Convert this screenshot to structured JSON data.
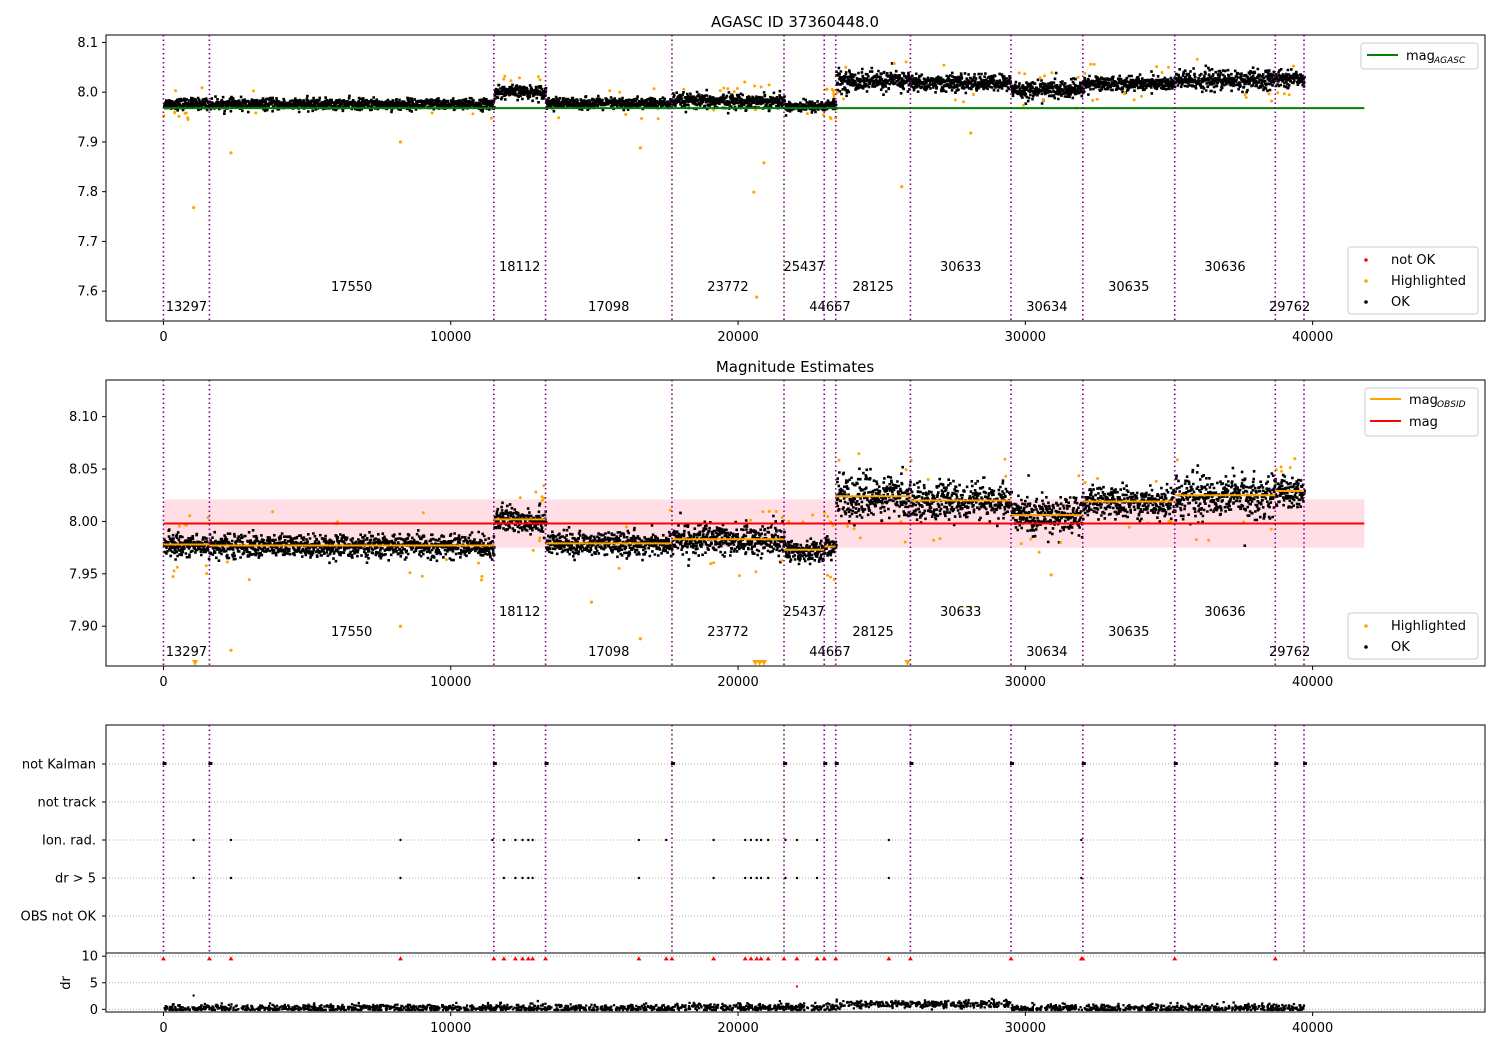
{
  "chart_data": [
    {
      "type": "scatter",
      "title": "AGASC ID 37360448.0",
      "xlabel": "",
      "ylabel": "",
      "xlim": [
        -2000,
        46000
      ],
      "ylim": [
        7.54,
        8.115
      ],
      "xticks": [
        0,
        10000,
        20000,
        30000,
        40000
      ],
      "xtick_labels": [
        "0",
        "10000",
        "20000",
        "30000",
        "40000"
      ],
      "yticks": [
        7.6,
        7.7,
        7.8,
        7.9,
        8.0,
        8.1
      ],
      "ytick_labels": [
        "7.6",
        "7.7",
        "7.8",
        "7.9",
        "8.0",
        "8.1"
      ],
      "reference_line": {
        "label": "mag",
        "subscript": "AGASC",
        "value": 7.968,
        "x_range": [
          0,
          41800
        ],
        "color": "#008000"
      },
      "legend_lines": [
        {
          "label": "mag",
          "subscript": "AGASC",
          "color": "#008000"
        }
      ],
      "legend_points": [
        {
          "label": "not OK",
          "color": "#ff0000"
        },
        {
          "label": "Highlighted",
          "color": "#ffa500"
        },
        {
          "label": "OK",
          "color": "#000000"
        }
      ]
    },
    {
      "type": "scatter",
      "title": "Magnitude Estimates",
      "xlabel": "",
      "ylabel": "",
      "xlim": [
        -2000,
        46000
      ],
      "ylim": [
        7.862,
        8.135
      ],
      "xticks": [
        0,
        10000,
        20000,
        30000,
        40000
      ],
      "xtick_labels": [
        "0",
        "10000",
        "20000",
        "30000",
        "40000"
      ],
      "yticks": [
        7.9,
        7.95,
        8.0,
        8.05,
        8.1
      ],
      "ytick_labels": [
        "7.90",
        "7.95",
        "8.00",
        "8.05",
        "8.10"
      ],
      "mean_line": {
        "label": "mag",
        "value": 7.998,
        "x_range": [
          0,
          41800
        ],
        "color": "#ff0000"
      },
      "band": {
        "low": 7.975,
        "high": 8.021,
        "color": "#ffc0cb"
      },
      "obsid_mags": [
        7.978,
        7.977,
        8.002,
        7.979,
        7.983,
        7.973,
        7.976,
        8.024,
        8.02,
        8.006,
        8.019,
        8.025,
        8.029
      ],
      "legend_lines": [
        {
          "label": "mag",
          "subscript": "OBSID",
          "color": "#ffa500"
        },
        {
          "label": "mag",
          "subscript": "",
          "color": "#ff0000"
        }
      ],
      "legend_points": [
        {
          "label": "Highlighted",
          "color": "#ffa500"
        },
        {
          "label": "OK",
          "color": "#000000"
        }
      ]
    },
    {
      "type": "scatter",
      "title": "",
      "xlim": [
        -2000,
        46000
      ],
      "categories": [
        "not Kalman",
        "not track",
        "Ion. rad.",
        "dr > 5",
        "OBS not OK"
      ],
      "flag_points": {
        "Ion. rad.": [
          1050,
          2350,
          8250,
          11450,
          11850,
          12250,
          12500,
          12700,
          12850,
          16550,
          17500,
          19150,
          20250,
          20450,
          20650,
          20800,
          21050,
          21650,
          22050,
          22750,
          25250,
          31950
        ],
        "dr > 5": [
          1050,
          2350,
          8250,
          11850,
          12250,
          12500,
          12700,
          12850,
          16550,
          19150,
          20250,
          20450,
          20650,
          20800,
          21050,
          21650,
          22050,
          22750,
          25250,
          31950
        ]
      },
      "dr_panel": {
        "ylabel": "dr",
        "ylim": [
          -0.5,
          10.6
        ],
        "yticks": [
          0,
          5,
          10
        ],
        "ytick_labels": [
          "0",
          "5",
          "10"
        ]
      },
      "xticks": [
        0,
        10000,
        20000,
        30000,
        40000
      ],
      "xtick_labels": [
        "0",
        "10000",
        "20000",
        "30000",
        "40000"
      ]
    }
  ],
  "obsids": [
    {
      "label": "13297",
      "start": 0,
      "end": 1600,
      "level": 0
    },
    {
      "label": "17550",
      "start": 1600,
      "end": 11500,
      "level": 1
    },
    {
      "label": "18112",
      "start": 11500,
      "end": 13300,
      "level": 2
    },
    {
      "label": "17098",
      "start": 13300,
      "end": 17700,
      "level": 0
    },
    {
      "label": "23772",
      "start": 17700,
      "end": 21600,
      "level": 1
    },
    {
      "label": "25437",
      "start": 21600,
      "end": 23000,
      "level": 2
    },
    {
      "label": "44667",
      "start": 23000,
      "end": 23400,
      "level": 0
    },
    {
      "label": "28125",
      "start": 23400,
      "end": 26000,
      "level": 1
    },
    {
      "label": "30633",
      "start": 26000,
      "end": 29500,
      "level": 2
    },
    {
      "label": "30634",
      "start": 29500,
      "end": 32000,
      "level": 0
    },
    {
      "label": "30635",
      "start": 32000,
      "end": 35200,
      "level": 1
    },
    {
      "label": "30636",
      "start": 35200,
      "end": 38700,
      "level": 2
    },
    {
      "label": "29762",
      "start": 38700,
      "end": 39700,
      "level": 0
    }
  ],
  "obsid_boundaries": [
    0,
    1600,
    11500,
    13300,
    17700,
    21600,
    23000,
    23400,
    26000,
    29500,
    32000,
    35200,
    38700,
    39700
  ],
  "colors": {
    "ok": "#000000",
    "highlighted": "#ffa500",
    "not_ok": "#ff0000",
    "obsid_line": "#800080",
    "agasc_line": "#008000",
    "mag_line": "#ff0000",
    "band": "#ffc0cb",
    "grid": "#b0b0b0"
  }
}
